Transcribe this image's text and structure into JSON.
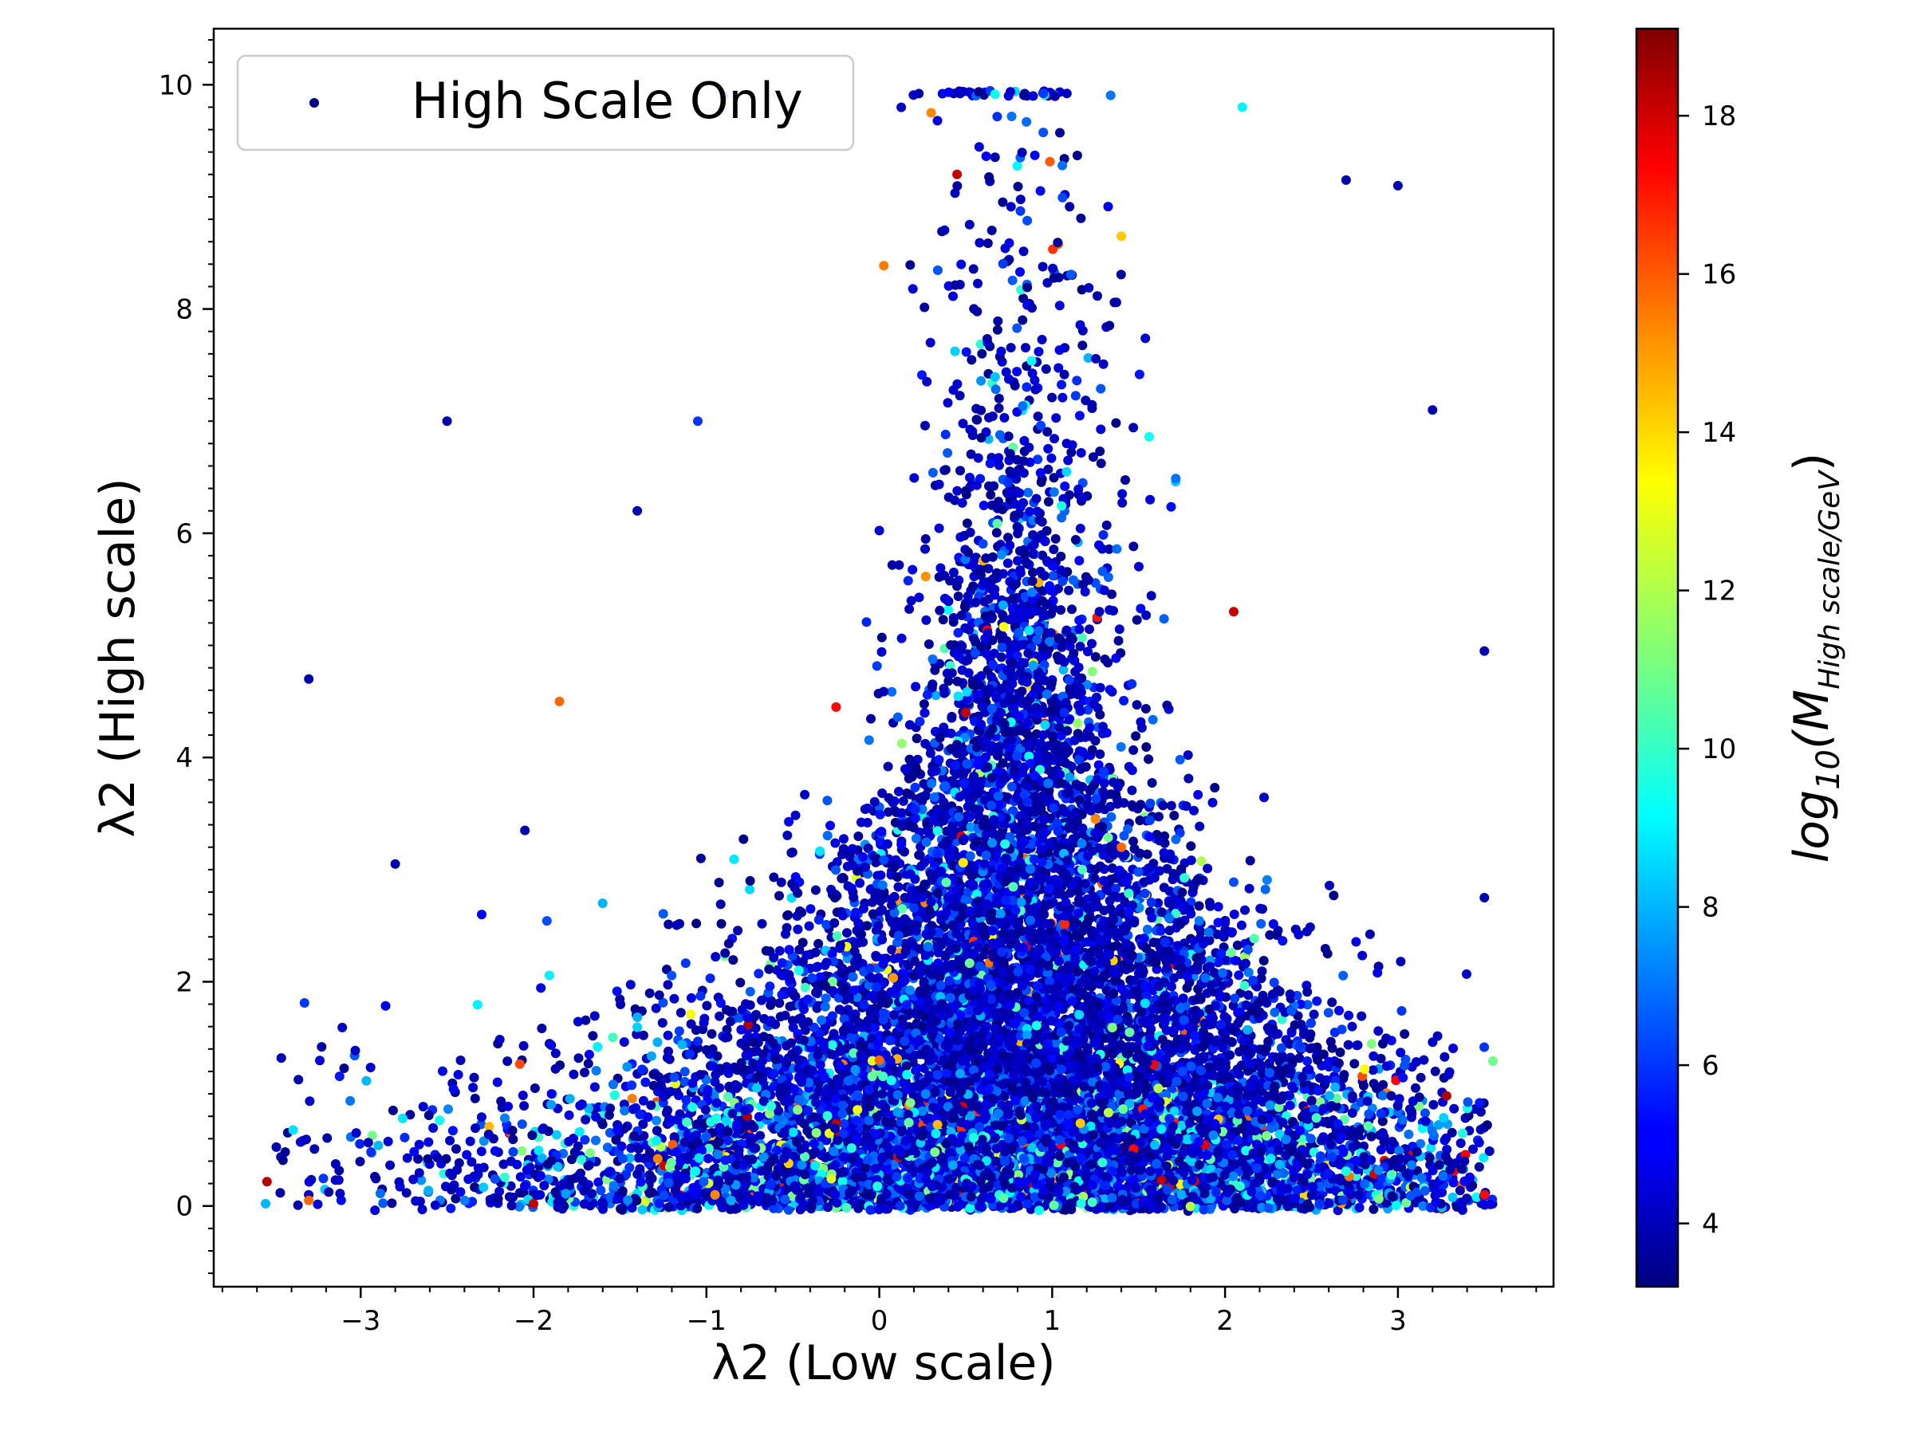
{
  "chart_data": {
    "type": "scatter",
    "xlabel": "λ2 (Low scale)",
    "ylabel": "λ2 (High scale)",
    "xlim": [
      -3.85,
      3.9
    ],
    "ylim": [
      -0.72,
      10.5
    ],
    "xticks": [
      -3,
      -2,
      -1,
      0,
      1,
      2,
      3
    ],
    "yticks": [
      0,
      2,
      4,
      6,
      8,
      10
    ],
    "xtick_labels": [
      "−3",
      "−2",
      "−1",
      "0",
      "1",
      "2",
      "3"
    ],
    "ytick_labels": [
      "0",
      "2",
      "4",
      "6",
      "8",
      "10"
    ],
    "grid": false,
    "legend": {
      "location": "upper-left",
      "entries": [
        "High Scale Only"
      ]
    },
    "colorbar": {
      "label": "log10(M_High scale/GeV)",
      "label_parts": {
        "base": "log",
        "base_sub": "10",
        "open": "(M",
        "sub": "High scale/GeV",
        "close": ")"
      },
      "colormap": "jet",
      "range": [
        3.2,
        19.1
      ],
      "ticks": [
        4,
        6,
        8,
        10,
        12,
        14,
        16,
        18
      ],
      "tick_labels": [
        "4",
        "6",
        "8",
        "10",
        "12",
        "14",
        "16",
        "18"
      ]
    },
    "series": [
      {
        "name": "High Scale Only",
        "color_encoding": "log10(M_High scale/GeV)",
        "n_points_approx": 13000,
        "distribution_summary": "dense cloud centred near λ2(low)≈0.8, spanning x from −3.5 to 3.5; density peaks near y≈0 and thins toward y≈10; most points log10 M ≈ 3.5–6, a minority 8–18 concentrated near y<1",
        "points": [
          {
            "x": -2.5,
            "y": 7.0,
            "c": 4
          },
          {
            "x": -3.3,
            "y": 4.7,
            "c": 4
          },
          {
            "x": -2.8,
            "y": 3.05,
            "c": 4
          },
          {
            "x": -1.85,
            "y": 4.5,
            "c": 15.5
          },
          {
            "x": -1.6,
            "y": 2.7,
            "c": 8
          },
          {
            "x": -2.3,
            "y": 2.6,
            "c": 5
          },
          {
            "x": -2.05,
            "y": 3.35,
            "c": 4
          },
          {
            "x": -1.4,
            "y": 6.2,
            "c": 4
          },
          {
            "x": -1.05,
            "y": 7.0,
            "c": 6
          },
          {
            "x": 0.3,
            "y": 9.75,
            "c": 15
          },
          {
            "x": 0.45,
            "y": 9.2,
            "c": 18
          },
          {
            "x": 2.1,
            "y": 9.8,
            "c": 9
          },
          {
            "x": 1.4,
            "y": 8.65,
            "c": 14
          },
          {
            "x": 2.7,
            "y": 9.15,
            "c": 4
          },
          {
            "x": 3.0,
            "y": 9.1,
            "c": 4
          },
          {
            "x": 3.2,
            "y": 7.1,
            "c": 4
          },
          {
            "x": 3.5,
            "y": 4.95,
            "c": 4
          },
          {
            "x": 3.5,
            "y": 2.75,
            "c": 4
          },
          {
            "x": 2.05,
            "y": 5.3,
            "c": 18
          },
          {
            "x": 0.5,
            "y": 4.4,
            "c": 18
          },
          {
            "x": -0.25,
            "y": 4.45,
            "c": 17
          },
          {
            "x": -2.0,
            "y": 0.02,
            "c": 18
          },
          {
            "x": -3.3,
            "y": 0.05,
            "c": 15.5
          },
          {
            "x": -3.55,
            "y": 0.02,
            "c": 8
          },
          {
            "x": 1.25,
            "y": 3.45,
            "c": 15
          },
          {
            "x": 1.4,
            "y": 3.2,
            "c": 15.5
          },
          {
            "x": 0.0,
            "y": 1.3,
            "c": 15.5
          },
          {
            "x": 3.5,
            "y": 0.1,
            "c": 17
          },
          {
            "x": -0.95,
            "y": 0.1,
            "c": 15
          },
          {
            "x": -0.9,
            "y": 9.9,
            "c": 7
          }
        ]
      }
    ]
  }
}
